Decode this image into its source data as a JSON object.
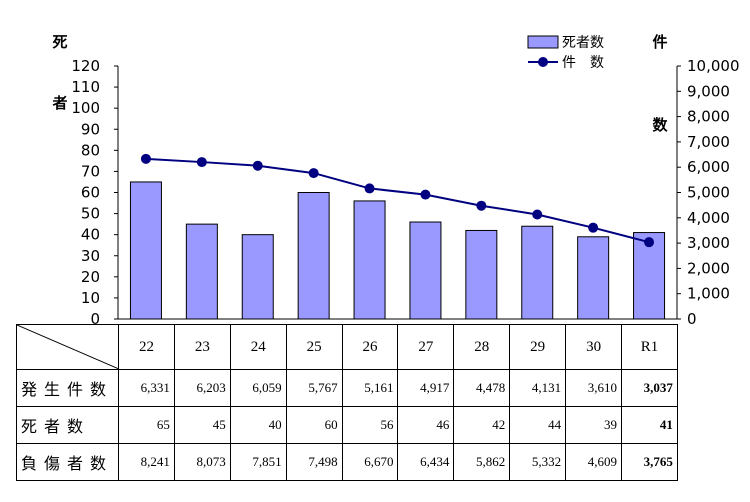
{
  "chart_data": {
    "type": "bar+line",
    "categories": [
      "22",
      "23",
      "24",
      "25",
      "26",
      "27",
      "28",
      "29",
      "30",
      "R1"
    ],
    "series": [
      {
        "name": "死者数",
        "kind": "bar",
        "axis": "left",
        "values": [
          65,
          45,
          40,
          60,
          56,
          46,
          42,
          44,
          39,
          41
        ]
      },
      {
        "name": "件　数",
        "kind": "line",
        "axis": "right",
        "values": [
          6331,
          6203,
          6059,
          5767,
          5161,
          4917,
          4478,
          4131,
          3610,
          3037
        ]
      }
    ],
    "left_axis": {
      "title": "死者",
      "ylim": [
        0,
        120
      ],
      "step": 10
    },
    "right_axis": {
      "title": "件数",
      "ylim": [
        0,
        10000
      ],
      "step": 1000
    },
    "legend_position": "top-right",
    "colors": {
      "bar_fill": "#9999ff",
      "bar_stroke": "#000000",
      "line": "#000080"
    },
    "table": {
      "rows": [
        {
          "label": "発生件数",
          "values": [
            "6,331",
            "6,203",
            "6,059",
            "5,767",
            "5,161",
            "4,917",
            "4,478",
            "4,131",
            "3,610",
            "3,037"
          ]
        },
        {
          "label": "死者数",
          "values": [
            "65",
            "45",
            "40",
            "60",
            "56",
            "46",
            "42",
            "44",
            "39",
            "41"
          ]
        },
        {
          "label": "負傷者数",
          "values": [
            "8,241",
            "8,073",
            "7,851",
            "7,498",
            "6,670",
            "6,434",
            "5,862",
            "5,332",
            "4,609",
            "3,765"
          ]
        }
      ]
    }
  }
}
